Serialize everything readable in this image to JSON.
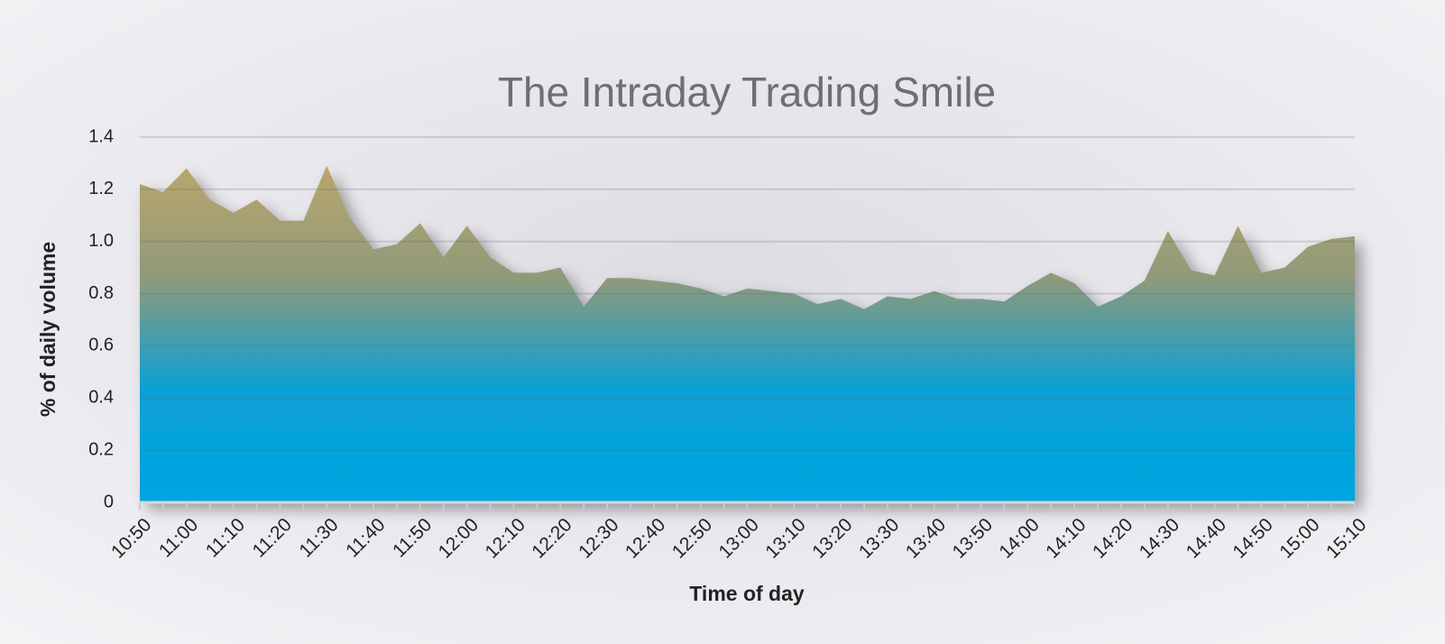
{
  "chart_data": {
    "type": "area",
    "title": "The Intraday Trading Smile",
    "xlabel": "Time of day",
    "ylabel": "% of daily volume",
    "categories": [
      "10:50",
      null,
      "11:00",
      null,
      "11:10",
      null,
      "11:20",
      null,
      "11:30",
      null,
      "11:40",
      null,
      "11:50",
      null,
      "12:00",
      null,
      "12:10",
      null,
      "12:20",
      null,
      "12:30",
      null,
      "12:40",
      null,
      "12:50",
      null,
      "13:00",
      null,
      "13:10",
      null,
      "13:20",
      null,
      "13:30",
      null,
      "13:40",
      null,
      "13:50",
      null,
      "14:00",
      null,
      "14:10",
      null,
      "14:20",
      null,
      "14:30",
      null,
      "14:40",
      null,
      "14:50",
      null,
      "15:00",
      null,
      "15:10"
    ],
    "values": [
      1.22,
      1.19,
      1.28,
      1.16,
      1.11,
      1.16,
      1.08,
      1.08,
      1.29,
      1.09,
      0.97,
      0.99,
      1.07,
      0.94,
      1.06,
      0.94,
      0.88,
      0.88,
      0.9,
      0.75,
      0.86,
      0.86,
      0.85,
      0.84,
      0.82,
      0.79,
      0.82,
      0.81,
      0.8,
      0.76,
      0.78,
      0.74,
      0.79,
      0.78,
      0.81,
      0.78,
      0.78,
      0.77,
      0.83,
      0.88,
      0.84,
      0.75,
      0.79,
      0.85,
      1.04,
      0.89,
      0.87,
      1.06,
      0.88,
      0.9,
      0.98,
      1.01,
      1.02
    ],
    "gradient": [
      "#b9a66b",
      "#8f9a7a",
      "#0aa0d6",
      "#00a6e0"
    ],
    "ylim": [
      0,
      1.4
    ],
    "yticks": [
      0,
      0.2,
      0.4,
      0.6,
      0.8,
      {
        "value": 1,
        "label": "1.0"
      },
      1.2,
      1.4
    ],
    "grid": true
  }
}
